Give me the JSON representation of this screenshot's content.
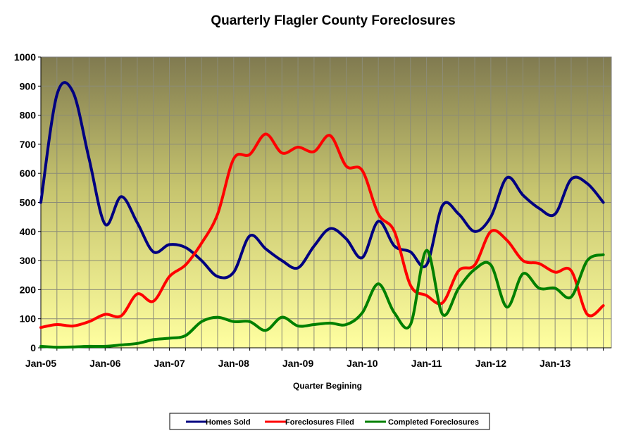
{
  "chart_data": {
    "type": "line",
    "title": "Quarterly Flagler County Foreclosures",
    "xlabel": "Quarter Begining",
    "ylabel": "",
    "ylim": [
      0,
      1000
    ],
    "yticks": [
      0,
      100,
      200,
      300,
      400,
      500,
      600,
      700,
      800,
      900,
      1000
    ],
    "categories": [
      "Q1 2005",
      "Q2 2005",
      "Q3 2005",
      "Q4 2005",
      "Q1 2006",
      "Q2 2006",
      "Q3 2006",
      "Q4 2006",
      "Q1 2007",
      "Q2 2007",
      "Q3 2007",
      "Q4 2007",
      "Q1 2008",
      "Q2 2008",
      "Q3 2008",
      "Q4 2008",
      "Q1 2009",
      "Q2 2009",
      "Q3 2009",
      "Q4 2009",
      "Q1 2010",
      "Q2 2010",
      "Q3 2010",
      "Q4 2010",
      "Q1 2011",
      "Q2 2011",
      "Q3 2011",
      "Q4 2011",
      "Q1 2012",
      "Q2 2012",
      "Q3 2012",
      "Q4 2012",
      "Q1 2013",
      "Q2 2013",
      "Q3 2013",
      "Q4 2013"
    ],
    "xtick_labels": [
      {
        "index": 0,
        "label": "Jan-05"
      },
      {
        "index": 4,
        "label": "Jan-06"
      },
      {
        "index": 8,
        "label": "Jan-07"
      },
      {
        "index": 12,
        "label": "Jan-08"
      },
      {
        "index": 16,
        "label": "Jan-09"
      },
      {
        "index": 20,
        "label": "Jan-10"
      },
      {
        "index": 24,
        "label": "Jan-11"
      },
      {
        "index": 28,
        "label": "Jan-12"
      },
      {
        "index": 32,
        "label": "Jan-13"
      }
    ],
    "grid": true,
    "legend_position": "bottom",
    "series": [
      {
        "name": "Homes Sold",
        "color": "#000080",
        "values": [
          500,
          870,
          880,
          650,
          425,
          520,
          430,
          330,
          355,
          345,
          300,
          245,
          260,
          385,
          340,
          300,
          275,
          350,
          410,
          375,
          310,
          435,
          350,
          330,
          285,
          490,
          460,
          400,
          450,
          585,
          525,
          480,
          460,
          580,
          565,
          500
        ]
      },
      {
        "name": "Foreclosures Filed",
        "color": "#ff0000",
        "values": [
          70,
          80,
          75,
          90,
          115,
          110,
          185,
          160,
          245,
          285,
          360,
          460,
          650,
          665,
          735,
          670,
          690,
          675,
          730,
          625,
          610,
          460,
          400,
          215,
          180,
          155,
          265,
          285,
          400,
          370,
          300,
          290,
          260,
          265,
          115,
          145
        ]
      },
      {
        "name": "Completed Foreclosures",
        "color": "#008000",
        "values": [
          5,
          2,
          3,
          5,
          5,
          10,
          15,
          28,
          33,
          42,
          90,
          105,
          90,
          90,
          60,
          105,
          75,
          80,
          85,
          80,
          120,
          220,
          120,
          80,
          335,
          115,
          205,
          270,
          285,
          140,
          255,
          205,
          205,
          175,
          300,
          320
        ]
      }
    ]
  }
}
